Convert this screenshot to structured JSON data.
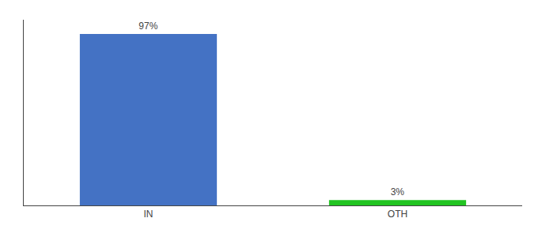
{
  "chart_data": {
    "type": "bar",
    "categories": [
      "IN",
      "OTH"
    ],
    "values": [
      97,
      3
    ],
    "value_labels": [
      "97%",
      "3%"
    ],
    "colors": [
      "#4472c4",
      "#22c422"
    ],
    "ylim": [
      0,
      105
    ],
    "data_labels": true,
    "tick_labels": "x",
    "grid": false
  }
}
